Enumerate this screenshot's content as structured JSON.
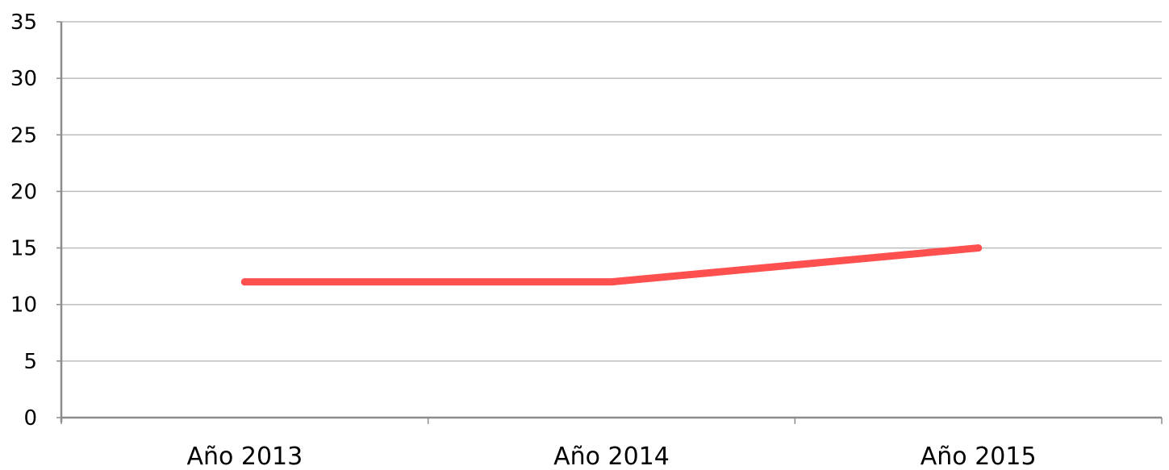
{
  "chart_data": {
    "type": "line",
    "title": "",
    "xlabel": "",
    "ylabel": "",
    "categories": [
      "Año 2013",
      "Año 2014",
      "Año 2015"
    ],
    "series": [
      {
        "values": [
          12,
          12,
          15
        ],
        "color": "#ff5050"
      }
    ],
    "ylim": [
      0,
      35
    ],
    "yticks": [
      0,
      5,
      10,
      15,
      20,
      25,
      30,
      35
    ],
    "grid": true,
    "legend": "none"
  }
}
